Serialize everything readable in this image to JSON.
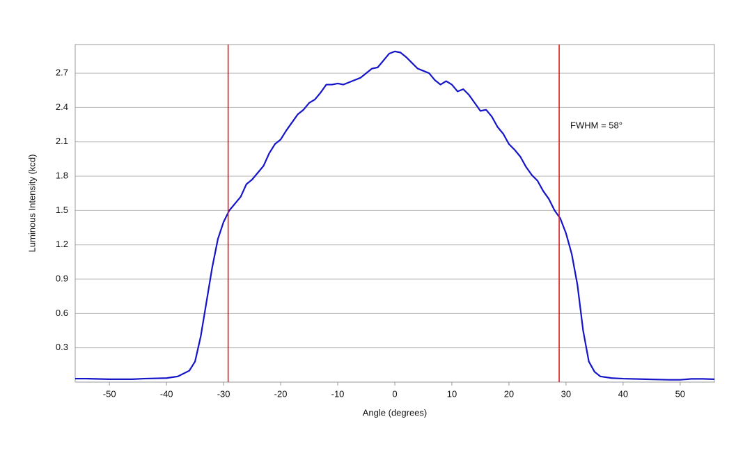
{
  "chart_data": {
    "type": "line",
    "x_label": "Angle (degrees)",
    "y_label": "Luminous Intensity (kcd)",
    "x": [
      -56,
      -54,
      -50,
      -46,
      -44,
      -40,
      -38,
      -36,
      -35,
      -34,
      -33,
      -32,
      -31,
      -30,
      -29,
      -28,
      -27,
      -26,
      -25,
      -24,
      -23,
      -22,
      -21,
      -20,
      -19,
      -18,
      -17,
      -16,
      -15,
      -14,
      -13,
      -12,
      -11,
      -10,
      -9,
      -8,
      -7,
      -6,
      -5,
      -4,
      -3,
      -2,
      -1,
      0,
      1,
      2,
      3,
      4,
      5,
      6,
      7,
      8,
      9,
      10,
      11,
      12,
      13,
      14,
      15,
      16,
      17,
      18,
      19,
      20,
      21,
      22,
      23,
      24,
      25,
      26,
      27,
      28,
      29,
      30,
      31,
      32,
      33,
      34,
      35,
      36,
      38,
      40,
      44,
      48,
      50,
      52,
      54,
      56
    ],
    "values": [
      0.03,
      0.03,
      0.025,
      0.025,
      0.03,
      0.035,
      0.05,
      0.1,
      0.18,
      0.4,
      0.7,
      1.0,
      1.25,
      1.4,
      1.5,
      1.56,
      1.62,
      1.73,
      1.77,
      1.83,
      1.89,
      2.0,
      2.08,
      2.12,
      2.2,
      2.27,
      2.34,
      2.38,
      2.44,
      2.47,
      2.53,
      2.6,
      2.6,
      2.61,
      2.6,
      2.62,
      2.64,
      2.66,
      2.7,
      2.74,
      2.75,
      2.81,
      2.87,
      2.89,
      2.88,
      2.84,
      2.79,
      2.74,
      2.72,
      2.7,
      2.64,
      2.6,
      2.63,
      2.6,
      2.54,
      2.56,
      2.51,
      2.44,
      2.37,
      2.38,
      2.32,
      2.23,
      2.17,
      2.08,
      2.03,
      1.97,
      1.88,
      1.81,
      1.76,
      1.67,
      1.6,
      1.5,
      1.43,
      1.3,
      1.12,
      0.85,
      0.45,
      0.18,
      0.09,
      0.05,
      0.035,
      0.03,
      0.025,
      0.02,
      0.02,
      0.028,
      0.028,
      0.025
    ],
    "color": "#1414c8",
    "xlim": [
      -56,
      56
    ],
    "ylim": [
      0,
      2.95
    ],
    "xticks": [
      -50,
      -40,
      -30,
      -20,
      -10,
      0,
      10,
      20,
      30,
      40,
      50
    ],
    "yticks": [
      0.3,
      0.6,
      0.9,
      1.2,
      1.5,
      1.8,
      2.1,
      2.4,
      2.7
    ],
    "grid": true,
    "vlines": [
      -29.2,
      28.8
    ],
    "vline_color": "#e02020",
    "annotation": "FWHM = 58°"
  }
}
